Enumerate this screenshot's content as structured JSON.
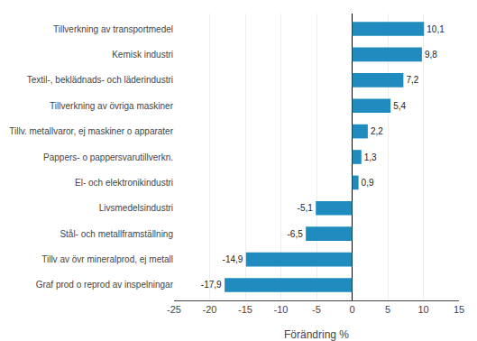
{
  "chart_data": {
    "type": "bar",
    "orientation": "horizontal",
    "categories": [
      "Graf prod o reprod av inspelningar",
      "Tillv av övr mineralprod, ej metall",
      "Stål- och metallframställning",
      "Livsmedelsindustri",
      "El- och elektronikindustri",
      "Pappers- o pappersvarutillverkn.",
      "Tillv. metallvaror, ej maskiner o apparater",
      "Tillverkning av övriga maskiner",
      "Textil-, beklädnads- och läderindustri",
      "Kemisk industri",
      "Tillverkning av transportmedel"
    ],
    "values": [
      -17.9,
      -14.9,
      -6.5,
      -5.1,
      0.9,
      1.3,
      2.2,
      5.4,
      7.2,
      9.8,
      10.1
    ],
    "value_labels": [
      "-17,9",
      "-14,9",
      "-6,5",
      "-5,1",
      "0,9",
      "1,3",
      "2,2",
      "5,4",
      "7,2",
      "9,8",
      "10,1"
    ],
    "color": "#1f8bbf",
    "xlabel": "Förändring %",
    "xlim": [
      -25,
      15
    ],
    "xticks": [
      -25,
      -20,
      -15,
      -10,
      -5,
      0,
      5,
      10,
      15
    ],
    "grid": true,
    "data_labels": true
  }
}
